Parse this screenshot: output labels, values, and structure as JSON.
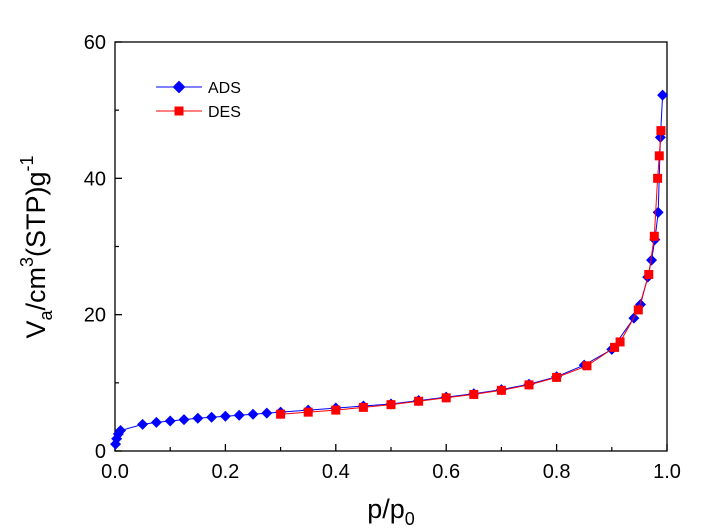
{
  "chart_data": {
    "type": "line",
    "title": "",
    "xlabel": {
      "main": "p/p",
      "sub": "0"
    },
    "ylabel": {
      "v": "V",
      "a": "a",
      "mid": "/cm",
      "three": "3",
      "stp": "(STP)g",
      "neg1": "-1"
    },
    "xlim": [
      0,
      1
    ],
    "ylim": [
      0,
      60
    ],
    "xticks": [
      0.0,
      0.2,
      0.4,
      0.6,
      0.8,
      1.0
    ],
    "xtick_labels": [
      "0.0",
      "0.2",
      "0.4",
      "0.6",
      "0.8",
      "1.0"
    ],
    "yticks": [
      0,
      20,
      40,
      60
    ],
    "ytick_labels": [
      "0",
      "20",
      "40",
      "60"
    ],
    "legend_position": "top-left",
    "series": [
      {
        "name": "ADS",
        "color": "#0000ff",
        "marker": "diamond",
        "x": [
          0.001,
          0.003,
          0.006,
          0.01,
          0.05,
          0.075,
          0.1,
          0.125,
          0.15,
          0.175,
          0.2,
          0.225,
          0.25,
          0.275,
          0.3,
          0.35,
          0.4,
          0.45,
          0.5,
          0.55,
          0.6,
          0.65,
          0.7,
          0.75,
          0.8,
          0.85,
          0.9,
          0.94,
          0.952,
          0.965,
          0.972,
          0.978,
          0.984,
          0.988,
          0.992
        ],
        "y": [
          1.0,
          1.8,
          2.5,
          3.0,
          3.9,
          4.2,
          4.4,
          4.6,
          4.8,
          4.95,
          5.1,
          5.25,
          5.4,
          5.55,
          5.7,
          6.0,
          6.3,
          6.6,
          6.9,
          7.4,
          7.9,
          8.4,
          9.0,
          9.8,
          10.9,
          12.6,
          14.9,
          19.5,
          21.5,
          25.5,
          28.0,
          31.0,
          35.0,
          46.0,
          52.2
        ]
      },
      {
        "name": "DES",
        "color": "#ff0000",
        "marker": "square",
        "x": [
          0.3,
          0.35,
          0.4,
          0.45,
          0.5,
          0.55,
          0.6,
          0.65,
          0.7,
          0.75,
          0.8,
          0.855,
          0.905,
          0.915,
          0.948,
          0.967,
          0.977,
          0.983,
          0.986,
          0.989
        ],
        "y": [
          5.4,
          5.7,
          6.0,
          6.4,
          6.8,
          7.3,
          7.8,
          8.3,
          8.9,
          9.7,
          10.8,
          12.5,
          15.2,
          16.0,
          20.7,
          25.9,
          31.5,
          40.0,
          43.3,
          47.0
        ]
      }
    ]
  }
}
